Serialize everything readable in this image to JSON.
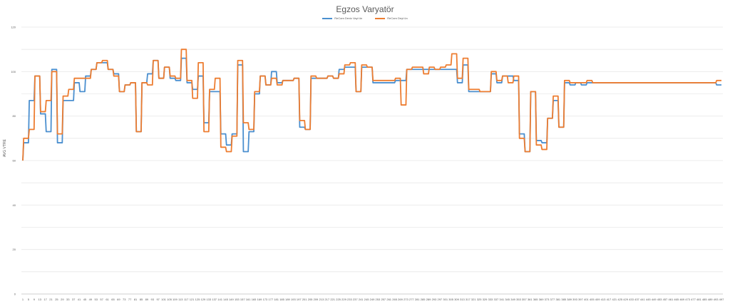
{
  "chart_data": {
    "type": "line",
    "title": "Egzos Varyatör",
    "xlabel": "",
    "ylabel": "AVG VTRE",
    "ylim": [
      0,
      120
    ],
    "yticks": [
      0,
      20,
      40,
      60,
      80,
      100,
      120
    ],
    "grid": true,
    "legend_position": "top",
    "x": [
      1,
      5,
      9,
      13,
      17,
      21,
      25,
      29,
      33,
      37,
      41,
      45,
      49,
      53,
      57,
      61,
      65,
      69,
      73,
      77,
      81,
      85,
      89,
      93,
      97,
      101,
      105,
      109,
      113,
      117,
      121,
      125,
      129,
      133,
      137,
      141,
      145,
      149,
      153,
      157,
      161,
      165,
      169,
      173,
      177,
      181,
      185,
      189,
      193,
      197,
      201,
      205,
      209,
      213,
      217,
      221,
      225,
      229,
      233,
      237,
      241,
      245,
      249,
      253,
      257,
      261,
      265,
      269,
      273,
      277,
      281,
      285,
      289,
      293,
      297,
      301,
      305,
      309,
      313,
      317,
      321,
      325,
      329,
      333,
      337,
      341,
      345,
      349,
      353,
      357,
      361,
      365,
      369,
      373,
      377,
      381,
      385,
      389,
      393,
      397,
      401,
      405,
      409,
      413,
      417,
      421,
      425,
      429,
      433,
      437,
      441,
      445,
      449,
      453,
      457,
      461,
      465,
      469,
      473,
      477,
      481,
      485,
      489,
      493,
      497
    ],
    "series": [
      {
        "name": "ReCam Deviz Vayt ün",
        "color": "#4a8fcf",
        "values": [
          60,
          68,
          87,
          98,
          81,
          73,
          101,
          68,
          87,
          87,
          95,
          91,
          98,
          101,
          104,
          104,
          101,
          99,
          91,
          94,
          95,
          73,
          95,
          99,
          105,
          97,
          102,
          97,
          96,
          106,
          95,
          92,
          98,
          77,
          91,
          91,
          72,
          67,
          72,
          103,
          64,
          73,
          90,
          98,
          94,
          100,
          95,
          96,
          96,
          97,
          75,
          74,
          97,
          97,
          97,
          98,
          97,
          101,
          102,
          102,
          91,
          102,
          102,
          95,
          95,
          95,
          95,
          96,
          96,
          101,
          101,
          101,
          101,
          101,
          101,
          101,
          101,
          101,
          95,
          103,
          91,
          91,
          91,
          91,
          99,
          95,
          98,
          98,
          96,
          72,
          64,
          91,
          69,
          68,
          79,
          87,
          75,
          95,
          94,
          95,
          94,
          95,
          95,
          95,
          95,
          95,
          95,
          95,
          95,
          95,
          95,
          95,
          95,
          95,
          95,
          95,
          95,
          95,
          95,
          95,
          95,
          95,
          95,
          95,
          94
        ]
      },
      {
        "name": "ReCam Deyt ün",
        "color": "#ed7d31",
        "values": [
          60,
          70,
          74,
          98,
          82,
          87,
          100,
          72,
          89,
          92,
          97,
          97,
          97,
          101,
          104,
          105,
          101,
          98,
          91,
          94,
          95,
          73,
          95,
          94,
          105,
          97,
          102,
          98,
          97,
          110,
          96,
          88,
          104,
          73,
          92,
          97,
          66,
          64,
          71,
          105,
          77,
          74,
          91,
          98,
          94,
          97,
          94,
          96,
          96,
          97,
          78,
          74,
          98,
          97,
          97,
          98,
          97,
          99,
          103,
          104,
          91,
          103,
          102,
          96,
          96,
          96,
          96,
          97,
          85,
          101,
          102,
          102,
          99,
          102,
          101,
          102,
          103,
          108,
          97,
          106,
          92,
          92,
          91,
          91,
          100,
          96,
          98,
          95,
          98,
          70,
          64,
          91,
          67,
          65,
          79,
          89,
          75,
          96,
          95,
          95,
          95,
          96,
          95,
          95,
          95,
          95,
          95,
          95,
          95,
          95,
          95,
          95,
          95,
          95,
          95,
          95,
          95,
          95,
          95,
          95,
          95,
          95,
          95,
          95,
          96
        ]
      }
    ]
  }
}
